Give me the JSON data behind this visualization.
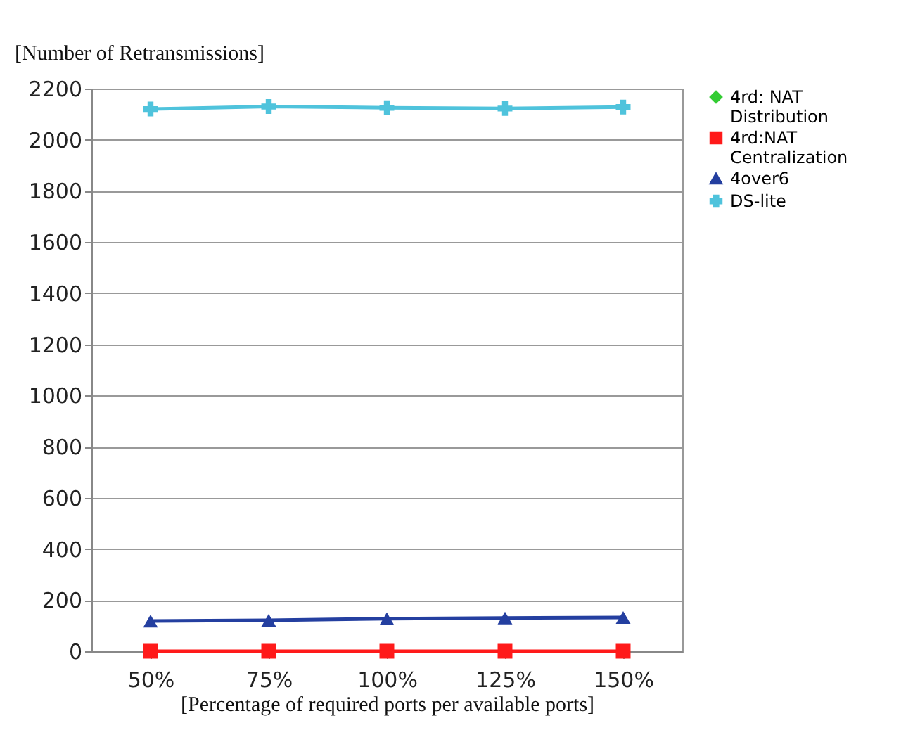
{
  "chart_data": {
    "type": "line",
    "xlabel": "[Percentage of required ports per available ports]",
    "ylabel": "[Number of Retransmissions]",
    "categories": [
      "50%",
      "75%",
      "100%",
      "125%",
      "150%"
    ],
    "series": [
      {
        "name": "4rd: NAT\nDistribution",
        "color": "#33cc33",
        "marker": "diamond",
        "values": [
          null,
          null,
          null,
          null,
          null
        ]
      },
      {
        "name": "4rd:NAT\nCentralization",
        "color": "#ff1a1a",
        "marker": "square",
        "values": [
          0,
          0,
          0,
          0,
          0
        ]
      },
      {
        "name": "4over6",
        "color": "#243fa0",
        "marker": "triangle",
        "values": [
          118,
          121,
          127,
          130,
          132
        ]
      },
      {
        "name": "DS-lite",
        "color": "#4fc3dc",
        "marker": "cross",
        "values": [
          2120,
          2130,
          2125,
          2122,
          2128
        ]
      }
    ],
    "ylim": [
      0,
      2200
    ],
    "yticks": [
      0,
      200,
      400,
      600,
      800,
      1000,
      1200,
      1400,
      1600,
      1800,
      2000,
      2200
    ],
    "grid": "y",
    "legend": "right",
    "line_style": "solid"
  }
}
